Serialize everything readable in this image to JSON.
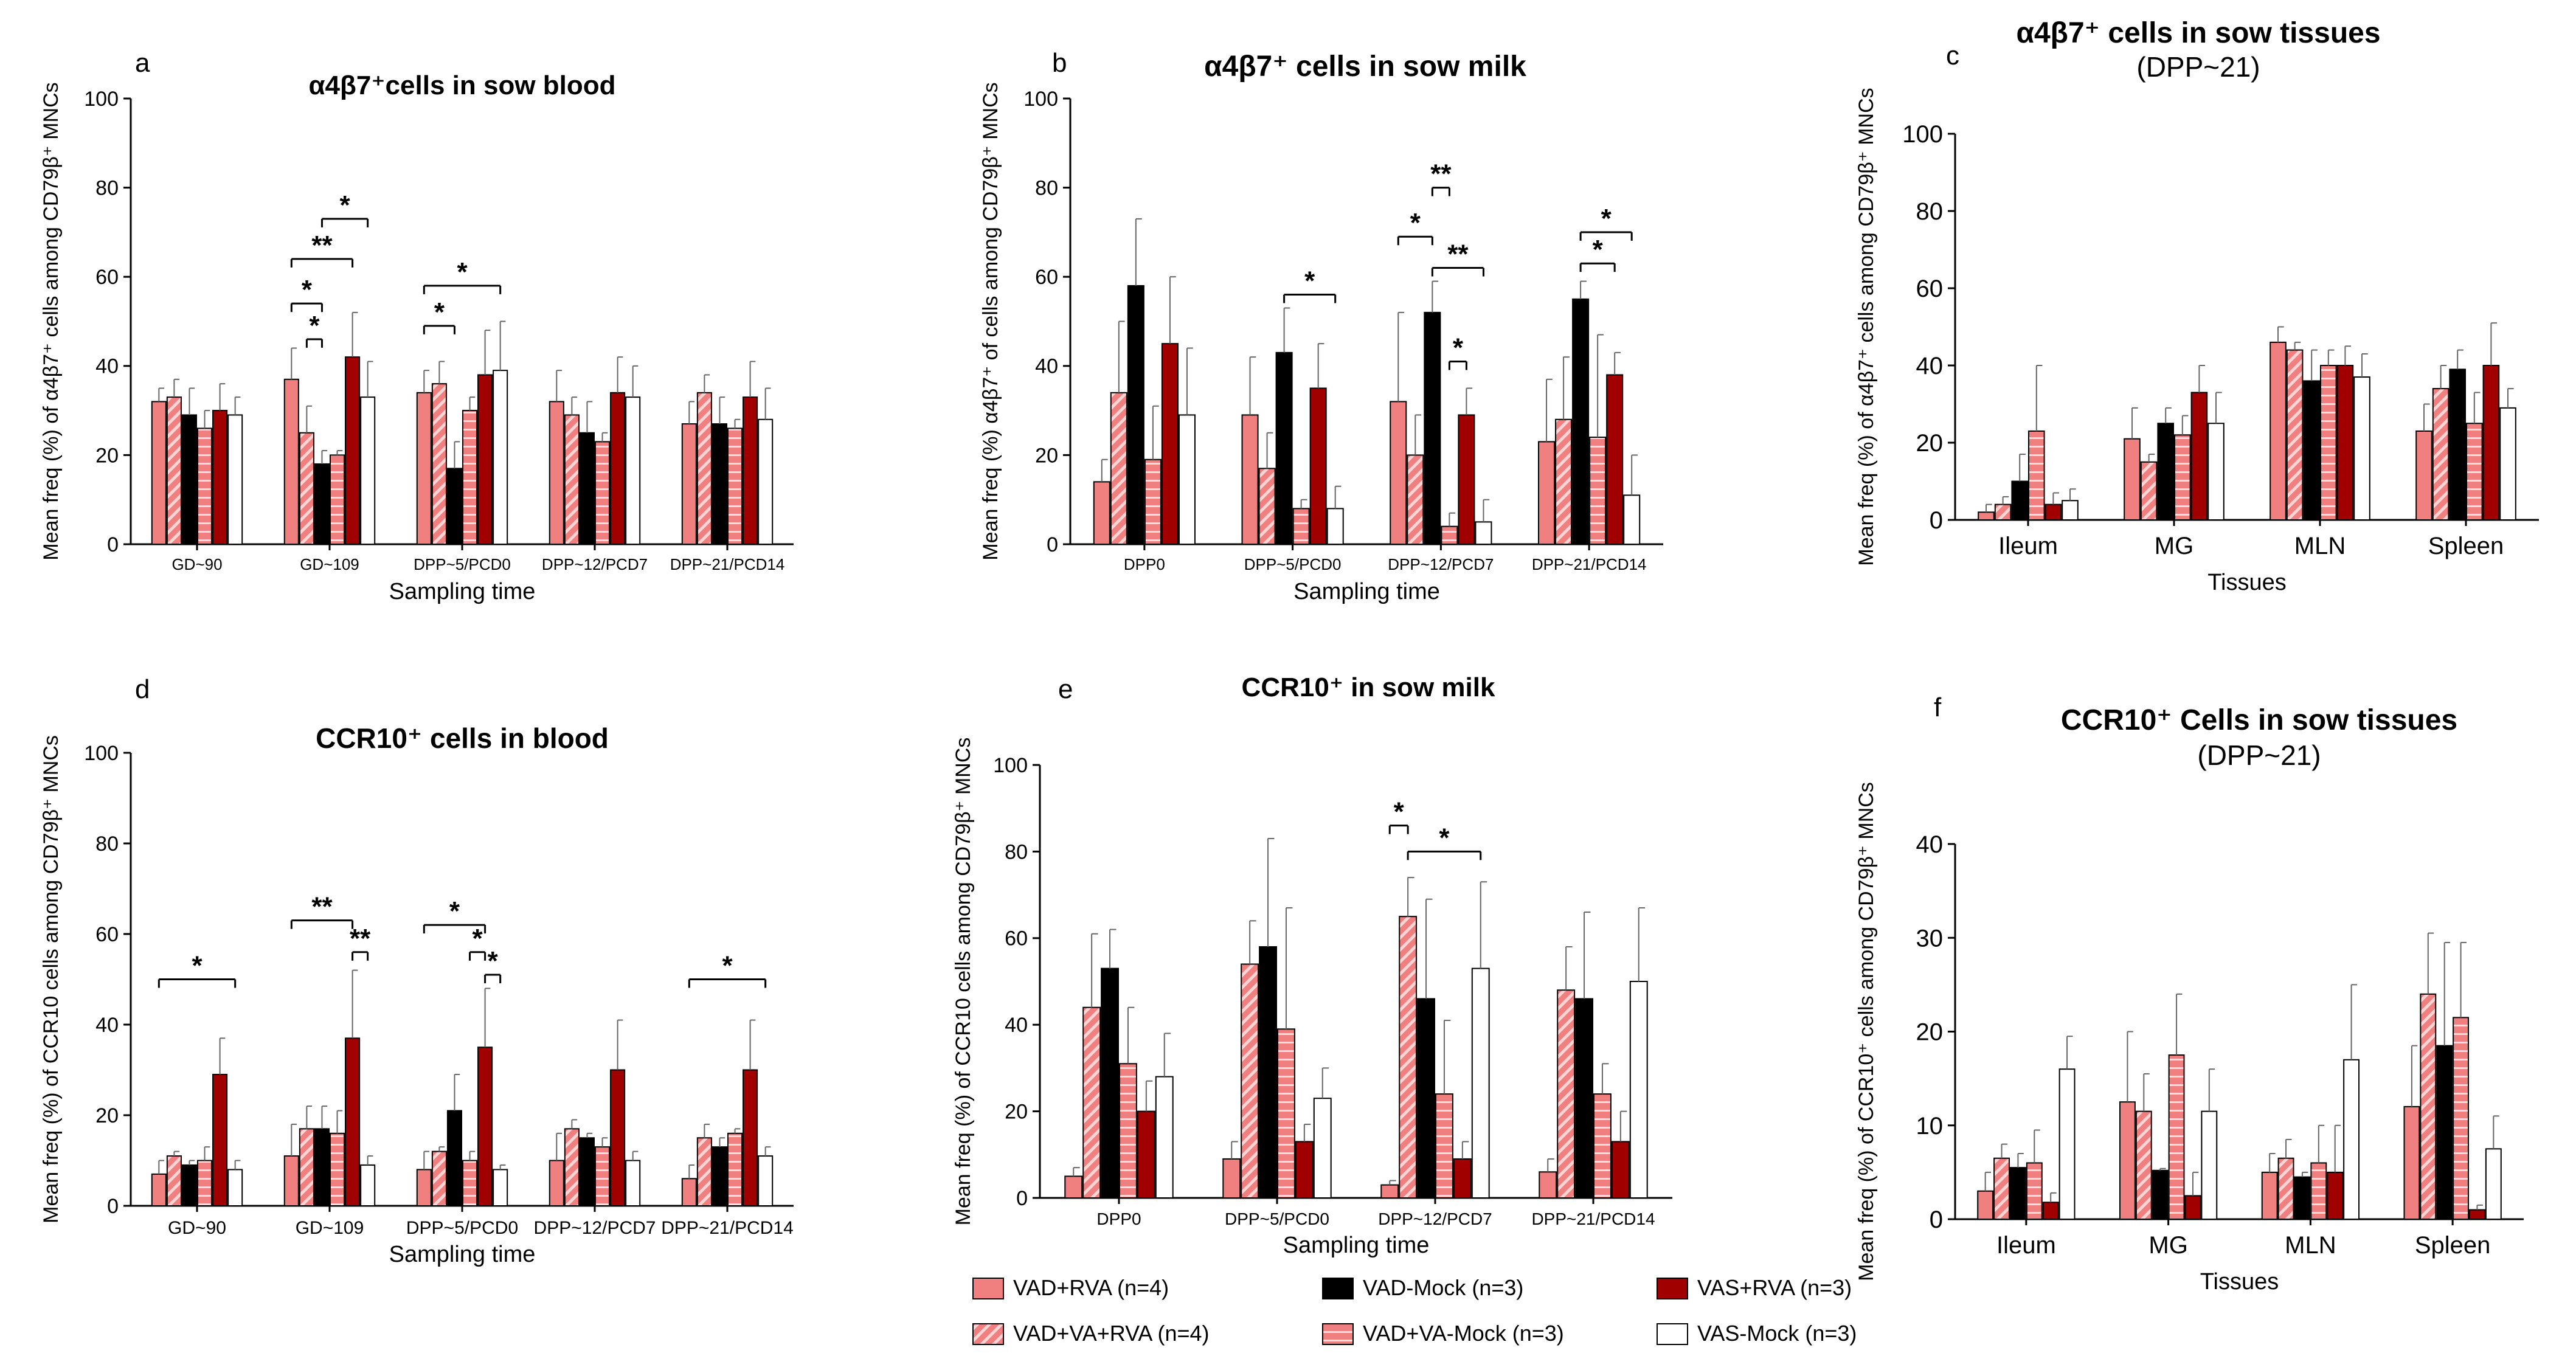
{
  "figure": {
    "title": ""
  },
  "groups": [
    {
      "key": "vad_rva",
      "label": "VAD+RVA (n=4)",
      "fill": "#f08080",
      "pattern": "solid"
    },
    {
      "key": "vad_va_rva",
      "label": "VAD+VA+RVA (n=4)",
      "fill": "#f08080",
      "pattern": "hatch"
    },
    {
      "key": "vad_mock",
      "label": "VAD-Mock (n=3)",
      "fill": "#000000",
      "pattern": "solid"
    },
    {
      "key": "vad_va_mock",
      "label": "VAD+VA-Mock (n=3)",
      "fill": "#f08080",
      "pattern": "hstripe"
    },
    {
      "key": "vas_rva",
      "label": "VAS+RVA (n=3)",
      "fill": "#a00000",
      "pattern": "solid"
    },
    {
      "key": "vas_mock",
      "label": "VAS-Mock (n=3)",
      "fill": "#ffffff",
      "pattern": "solid"
    }
  ],
  "legend": {
    "order": [
      "vad_rva",
      "vad_mock",
      "vas_rva",
      "vad_va_rva",
      "vad_va_mock",
      "vas_mock"
    ]
  },
  "chart_data": [
    {
      "panel": "a",
      "type": "bar",
      "title": "α4β7⁺cells in sow blood",
      "subtitle": "",
      "ylabel": "Mean freq (%) of α4β7⁺ cells among CD79β⁺ MNCs",
      "xlabel": "Sampling time",
      "ylim": [
        0,
        100
      ],
      "yticks": [
        0,
        20,
        40,
        60,
        80,
        100
      ],
      "categories": [
        "GD~90",
        "GD~109",
        "DPP~5/PCD0",
        "DPP~12/PCD7",
        "DPP~21/PCD14"
      ],
      "series_keys": [
        "vad_rva",
        "vad_va_rva",
        "vad_mock",
        "vad_va_mock",
        "vas_rva",
        "vas_mock"
      ],
      "values": [
        [
          32,
          33,
          29,
          26,
          30,
          29
        ],
        [
          37,
          25,
          18,
          20,
          42,
          33
        ],
        [
          34,
          36,
          17,
          30,
          38,
          39
        ],
        [
          32,
          29,
          25,
          23,
          34,
          33
        ],
        [
          27,
          34,
          27,
          26,
          33,
          28
        ]
      ],
      "errors": [
        [
          3,
          4,
          6,
          4,
          6,
          4
        ],
        [
          7,
          6,
          3,
          1,
          10,
          8
        ],
        [
          5,
          5,
          6,
          3,
          10,
          11
        ],
        [
          7,
          4,
          7,
          2,
          8,
          7
        ],
        [
          5,
          4,
          6,
          2,
          8,
          7
        ]
      ],
      "annotations": [
        {
          "cat": 1,
          "from": 0,
          "to": 2,
          "y": 54,
          "label": "*"
        },
        {
          "cat": 1,
          "from": 1,
          "to": 2,
          "y": 46,
          "label": "*"
        },
        {
          "cat": 1,
          "from": 0,
          "to": 4,
          "y": 64,
          "label": "**"
        },
        {
          "cat": 1,
          "from": 2,
          "to": 5,
          "y": 73,
          "label": "*"
        },
        {
          "cat": 2,
          "from": 0,
          "to": 2,
          "y": 49,
          "label": "*"
        },
        {
          "cat": 2,
          "from": 0,
          "to": 5,
          "y": 58,
          "label": "*"
        }
      ]
    },
    {
      "panel": "b",
      "type": "bar",
      "title": "α4β7⁺ cells in sow milk",
      "subtitle": "",
      "ylabel": "Mean freq (%) α4β7⁺ of cells among CD79β⁺ MNCs",
      "xlabel": "Sampling time",
      "ylim": [
        0,
        100
      ],
      "yticks": [
        0,
        20,
        40,
        60,
        80,
        100
      ],
      "categories": [
        "DPP0",
        "DPP~5/PCD0",
        "DPP~12/PCD7",
        "DPP~21/PCD14"
      ],
      "series_keys": [
        "vad_rva",
        "vad_va_rva",
        "vad_mock",
        "vad_va_mock",
        "vas_rva",
        "vas_mock"
      ],
      "values": [
        [
          14,
          34,
          58,
          19,
          45,
          29
        ],
        [
          29,
          17,
          43,
          8,
          35,
          8
        ],
        [
          32,
          20,
          52,
          4,
          29,
          5
        ],
        [
          23,
          28,
          55,
          24,
          38,
          11
        ]
      ],
      "errors": [
        [
          5,
          16,
          15,
          12,
          15,
          15
        ],
        [
          13,
          8,
          10,
          2,
          10,
          5
        ],
        [
          20,
          9,
          7,
          3,
          6,
          5
        ],
        [
          14,
          14,
          4,
          23,
          5,
          9
        ]
      ],
      "annotations": [
        {
          "cat": 1,
          "from": 2,
          "to": 5,
          "y": 56,
          "label": "*"
        },
        {
          "cat": 2,
          "from": 0,
          "to": 2,
          "y": 69,
          "label": "*"
        },
        {
          "cat": 2,
          "from": 2,
          "to": 3,
          "y": 80,
          "label": "**"
        },
        {
          "cat": 2,
          "from": 2,
          "to": 5,
          "y": 62,
          "label": "**"
        },
        {
          "cat": 2,
          "from": 3,
          "to": 4,
          "y": 41,
          "label": "*"
        },
        {
          "cat": 3,
          "from": 2,
          "to": 5,
          "y": 70,
          "label": "*"
        },
        {
          "cat": 3,
          "from": 2,
          "to": 4,
          "y": 63,
          "label": "*"
        }
      ]
    },
    {
      "panel": "c",
      "type": "bar",
      "title": "α4β7⁺ cells in sow tissues",
      "subtitle": "(DPP~21)",
      "ylabel": "Mean freq (%) of α4β7⁺ cells among CD79β⁺ MNCs",
      "xlabel": "Tissues",
      "ylim": [
        0,
        100
      ],
      "yticks": [
        0,
        20,
        40,
        60,
        80,
        100
      ],
      "categories": [
        "Ileum",
        "MG",
        "MLN",
        "Spleen"
      ],
      "series_keys": [
        "vad_rva",
        "vad_va_rva",
        "vad_mock",
        "vad_va_mock",
        "vas_rva",
        "vas_mock"
      ],
      "values": [
        [
          2,
          4,
          10,
          23,
          4,
          5
        ],
        [
          21,
          15,
          25,
          22,
          33,
          25
        ],
        [
          46,
          44,
          36,
          40,
          40,
          37
        ],
        [
          23,
          34,
          39,
          25,
          40,
          29
        ]
      ],
      "errors": [
        [
          2,
          2,
          7,
          17,
          3,
          3
        ],
        [
          8,
          2,
          4,
          5,
          7,
          8
        ],
        [
          4,
          2,
          8,
          4,
          5,
          6
        ],
        [
          7,
          6,
          5,
          8,
          11,
          5
        ]
      ],
      "annotations": []
    },
    {
      "panel": "d",
      "type": "bar",
      "title": "CCR10⁺ cells in blood",
      "subtitle": "",
      "ylabel": "Mean freq (%) of CCR10 cells among CD79β⁺ MNCs",
      "xlabel": "Sampling time",
      "ylim": [
        0,
        100
      ],
      "yticks": [
        0,
        20,
        40,
        60,
        80,
        100
      ],
      "categories": [
        "GD~90",
        "GD~109",
        "DPP~5/PCD0",
        "DPP~12/PCD7",
        "DPP~21/PCD14"
      ],
      "series_keys": [
        "vad_rva",
        "vad_va_rva",
        "vad_mock",
        "vad_va_mock",
        "vas_rva",
        "vas_mock"
      ],
      "values": [
        [
          7,
          11,
          9,
          10,
          29,
          8
        ],
        [
          11,
          17,
          17,
          16,
          37,
          9
        ],
        [
          8,
          12,
          21,
          10,
          35,
          8
        ],
        [
          10,
          17,
          15,
          13,
          30,
          10
        ],
        [
          6,
          15,
          13,
          16,
          30,
          11
        ]
      ],
      "errors": [
        [
          3,
          1,
          1,
          3,
          8,
          2
        ],
        [
          7,
          5,
          5,
          5,
          15,
          2
        ],
        [
          4,
          1,
          8,
          2,
          13,
          1
        ],
        [
          6,
          2,
          1,
          2,
          11,
          2
        ],
        [
          3,
          3,
          2,
          1,
          11,
          2
        ]
      ],
      "annotations": [
        {
          "cat": 0,
          "from": 0,
          "to": 5,
          "y": 50,
          "label": "*"
        },
        {
          "cat": 1,
          "from": 0,
          "to": 4,
          "y": 63,
          "label": "**"
        },
        {
          "cat": 1,
          "from": 4,
          "to": 5,
          "y": 56,
          "label": "**"
        },
        {
          "cat": 2,
          "from": 0,
          "to": 4,
          "y": 62,
          "label": "*"
        },
        {
          "cat": 2,
          "from": 3,
          "to": 4,
          "y": 56,
          "label": "*"
        },
        {
          "cat": 2,
          "from": 4,
          "to": 5,
          "y": 51,
          "label": "*"
        },
        {
          "cat": 4,
          "from": 0,
          "to": 5,
          "y": 50,
          "label": "*"
        }
      ]
    },
    {
      "panel": "e",
      "type": "bar",
      "title": "CCR10⁺ in sow milk",
      "subtitle": "",
      "ylabel": "Mean freq (%) of CCR10 cells among CD79β⁺ MNCs",
      "xlabel": "Sampling time",
      "ylim": [
        0,
        100
      ],
      "yticks": [
        0,
        20,
        40,
        60,
        80,
        100
      ],
      "categories": [
        "DPP0",
        "DPP~5/PCD0",
        "DPP~12/PCD7",
        "DPP~21/PCD14"
      ],
      "series_keys": [
        "vad_rva",
        "vad_va_rva",
        "vad_mock",
        "vad_va_mock",
        "vas_rva",
        "vas_mock"
      ],
      "values": [
        [
          5,
          44,
          53,
          31,
          20,
          28
        ],
        [
          9,
          54,
          58,
          39,
          13,
          23
        ],
        [
          3,
          65,
          46,
          24,
          9,
          53
        ],
        [
          6,
          48,
          46,
          24,
          13,
          50
        ]
      ],
      "errors": [
        [
          2,
          17,
          9,
          13,
          7,
          10
        ],
        [
          4,
          10,
          25,
          28,
          4,
          7
        ],
        [
          1,
          9,
          23,
          17,
          4,
          20
        ],
        [
          3,
          10,
          20,
          7,
          7,
          17
        ]
      ],
      "annotations": [
        {
          "cat": 2,
          "from": 0,
          "to": 1,
          "y": 86,
          "label": "*"
        },
        {
          "cat": 2,
          "from": 1,
          "to": 5,
          "y": 80,
          "label": "*"
        }
      ]
    },
    {
      "panel": "f",
      "type": "bar",
      "title": "CCR10⁺ Cells in sow tissues",
      "subtitle": "(DPP~21)",
      "ylabel": "Mean freq (%) of CCR10⁺ cells among CD79β⁺ MNCs",
      "xlabel": "Tissues",
      "ylim": [
        0,
        40
      ],
      "yticks": [
        0,
        10,
        20,
        30,
        40
      ],
      "categories": [
        "Ileum",
        "MG",
        "MLN",
        "Spleen"
      ],
      "series_keys": [
        "vad_rva",
        "vad_va_rva",
        "vad_mock",
        "vad_va_mock",
        "vas_rva",
        "vas_mock"
      ],
      "values": [
        [
          3,
          6.5,
          5.5,
          6,
          1.8,
          16
        ],
        [
          12.5,
          11.5,
          5.2,
          17.5,
          2.5,
          11.5
        ],
        [
          5,
          6.5,
          4.5,
          6,
          5,
          17
        ],
        [
          12,
          24,
          18.5,
          21.5,
          1,
          7.5
        ]
      ],
      "errors": [
        [
          2,
          1.5,
          1.5,
          3.5,
          1,
          3.5
        ],
        [
          7.5,
          4,
          0.2,
          6.5,
          2.5,
          4.5
        ],
        [
          2,
          2,
          0.5,
          4,
          5,
          8
        ],
        [
          6.5,
          6.5,
          11,
          8,
          0.5,
          3.5
        ]
      ],
      "annotations": []
    }
  ]
}
